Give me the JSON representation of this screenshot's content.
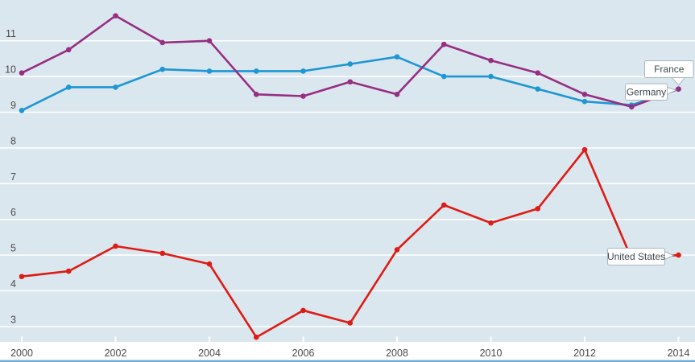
{
  "chart_data": {
    "type": "line",
    "x": [
      2000,
      2001,
      2002,
      2003,
      2004,
      2005,
      2006,
      2007,
      2008,
      2009,
      2010,
      2011,
      2012,
      2013,
      2014
    ],
    "x_tick_labels": [
      "2000",
      "2002",
      "2004",
      "2006",
      "2008",
      "2010",
      "2012",
      "2014"
    ],
    "x_ticks": [
      2000,
      2002,
      2004,
      2006,
      2008,
      2010,
      2012,
      2014
    ],
    "y_tick_labels": [
      "3",
      "4",
      "5",
      "6",
      "7",
      "8",
      "9",
      "10",
      "11"
    ],
    "y_gridlines": [
      3,
      4,
      5,
      6,
      7,
      8,
      9,
      10,
      11
    ],
    "ylim": [
      2.4,
      12.1
    ],
    "grid": "horizontal-white-lines",
    "legend_position": "end-of-line-callouts",
    "series": [
      {
        "name": "France",
        "color": "#1D96D4",
        "values": [
          9.05,
          9.7,
          9.7,
          10.2,
          10.15,
          10.15,
          10.15,
          10.35,
          10.55,
          10.0,
          10.0,
          9.65,
          9.3,
          9.2,
          9.65
        ]
      },
      {
        "name": "Germany",
        "color": "#962E82",
        "values": [
          10.1,
          10.75,
          11.7,
          10.95,
          11.0,
          9.5,
          9.45,
          9.85,
          9.5,
          10.9,
          10.45,
          10.1,
          9.5,
          9.15,
          9.65
        ]
      },
      {
        "name": "United States",
        "color": "#DE1B14",
        "values": [
          4.4,
          4.55,
          5.25,
          5.05,
          4.75,
          2.7,
          3.45,
          3.1,
          5.15,
          6.4,
          5.9,
          6.3,
          7.95,
          4.9,
          5.0
        ]
      }
    ],
    "annotations": [
      {
        "label": "France"
      },
      {
        "label": "Germany"
      },
      {
        "label": "United States"
      }
    ]
  },
  "colors": {
    "background": "#dbe7ee",
    "gridline": "#ffffff",
    "axis_text": "#4a4a4a",
    "axis_band": "#ffffff",
    "bottom_border": "#74afd0",
    "callout_fill": "#ffffff",
    "callout_border": "#a9b6be",
    "callout_text": "#3f4a52"
  }
}
